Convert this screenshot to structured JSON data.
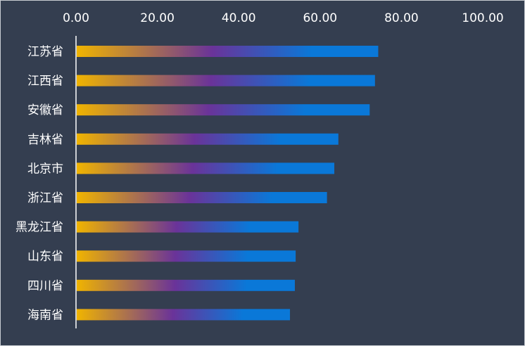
{
  "colors": {
    "background": "#343e50",
    "axis": "#ffffff",
    "text": "#ffffff",
    "bar_gradient": [
      "#f0b400",
      "#6a3399",
      "#0a78d8"
    ]
  },
  "chart_data": {
    "type": "bar",
    "orientation": "horizontal",
    "categories": [
      "江苏省",
      "江西省",
      "安徽省",
      "吉林省",
      "北京市",
      "浙江省",
      "黑龙江省",
      "山东省",
      "四川省",
      "海南省"
    ],
    "values": [
      74.3,
      73.5,
      72.2,
      64.5,
      63.5,
      61.7,
      54.7,
      54.0,
      53.8,
      52.6
    ],
    "xlim": [
      0,
      100
    ],
    "x_ticks": [
      "0.00",
      "20.00",
      "40.00",
      "60.00",
      "80.00",
      "100.00"
    ],
    "x_axis_position": "top",
    "grid": false,
    "legend": "none",
    "title": "",
    "xlabel": "",
    "ylabel": ""
  }
}
